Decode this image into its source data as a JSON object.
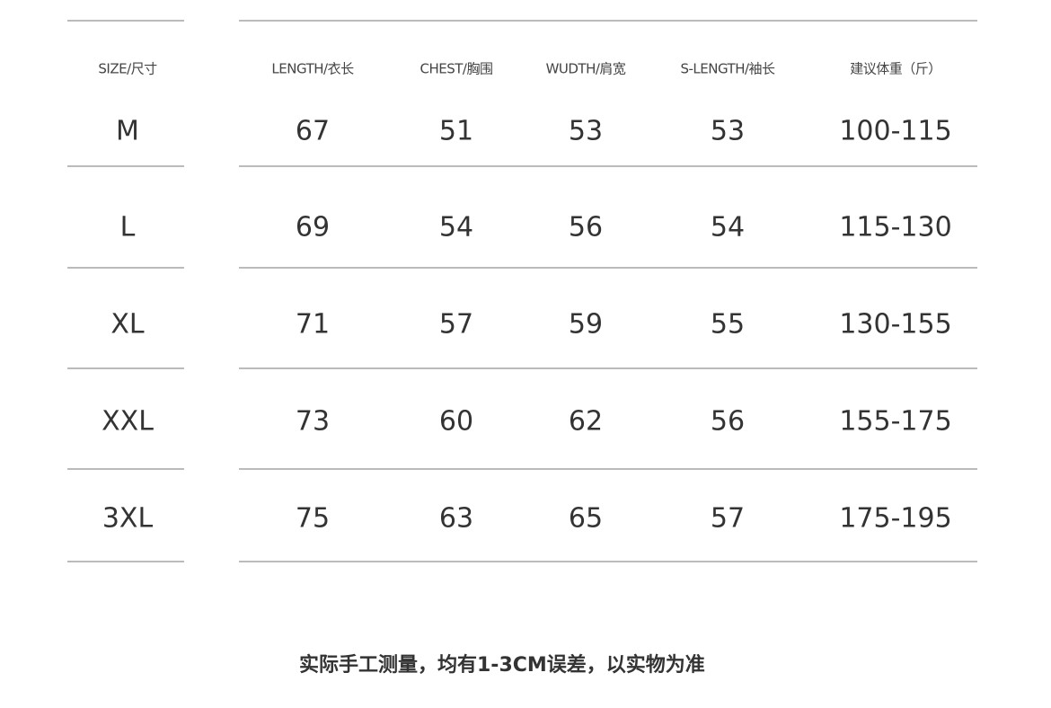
{
  "headers": [
    "SIZE/尺寸",
    "LENGTH/衣长",
    "CHEST/胸围",
    "WUDTH/肩宽",
    "S-LENGTH/袖长",
    "建议体重（斤）"
  ],
  "rows": [
    [
      "M",
      "67",
      "51",
      "53",
      "53",
      "100-115"
    ],
    [
      "L",
      "69",
      "54",
      "56",
      "54",
      "115-130"
    ],
    [
      "XL",
      "71",
      "57",
      "59",
      "55",
      "130-155"
    ],
    [
      "XXL",
      "73",
      "60",
      "62",
      "56",
      "155-175"
    ],
    [
      "3XL",
      "75",
      "63",
      "65",
      "57",
      "175-195"
    ]
  ],
  "note": "实际手工测量，均有1-3CM误差，以实物为准"
}
